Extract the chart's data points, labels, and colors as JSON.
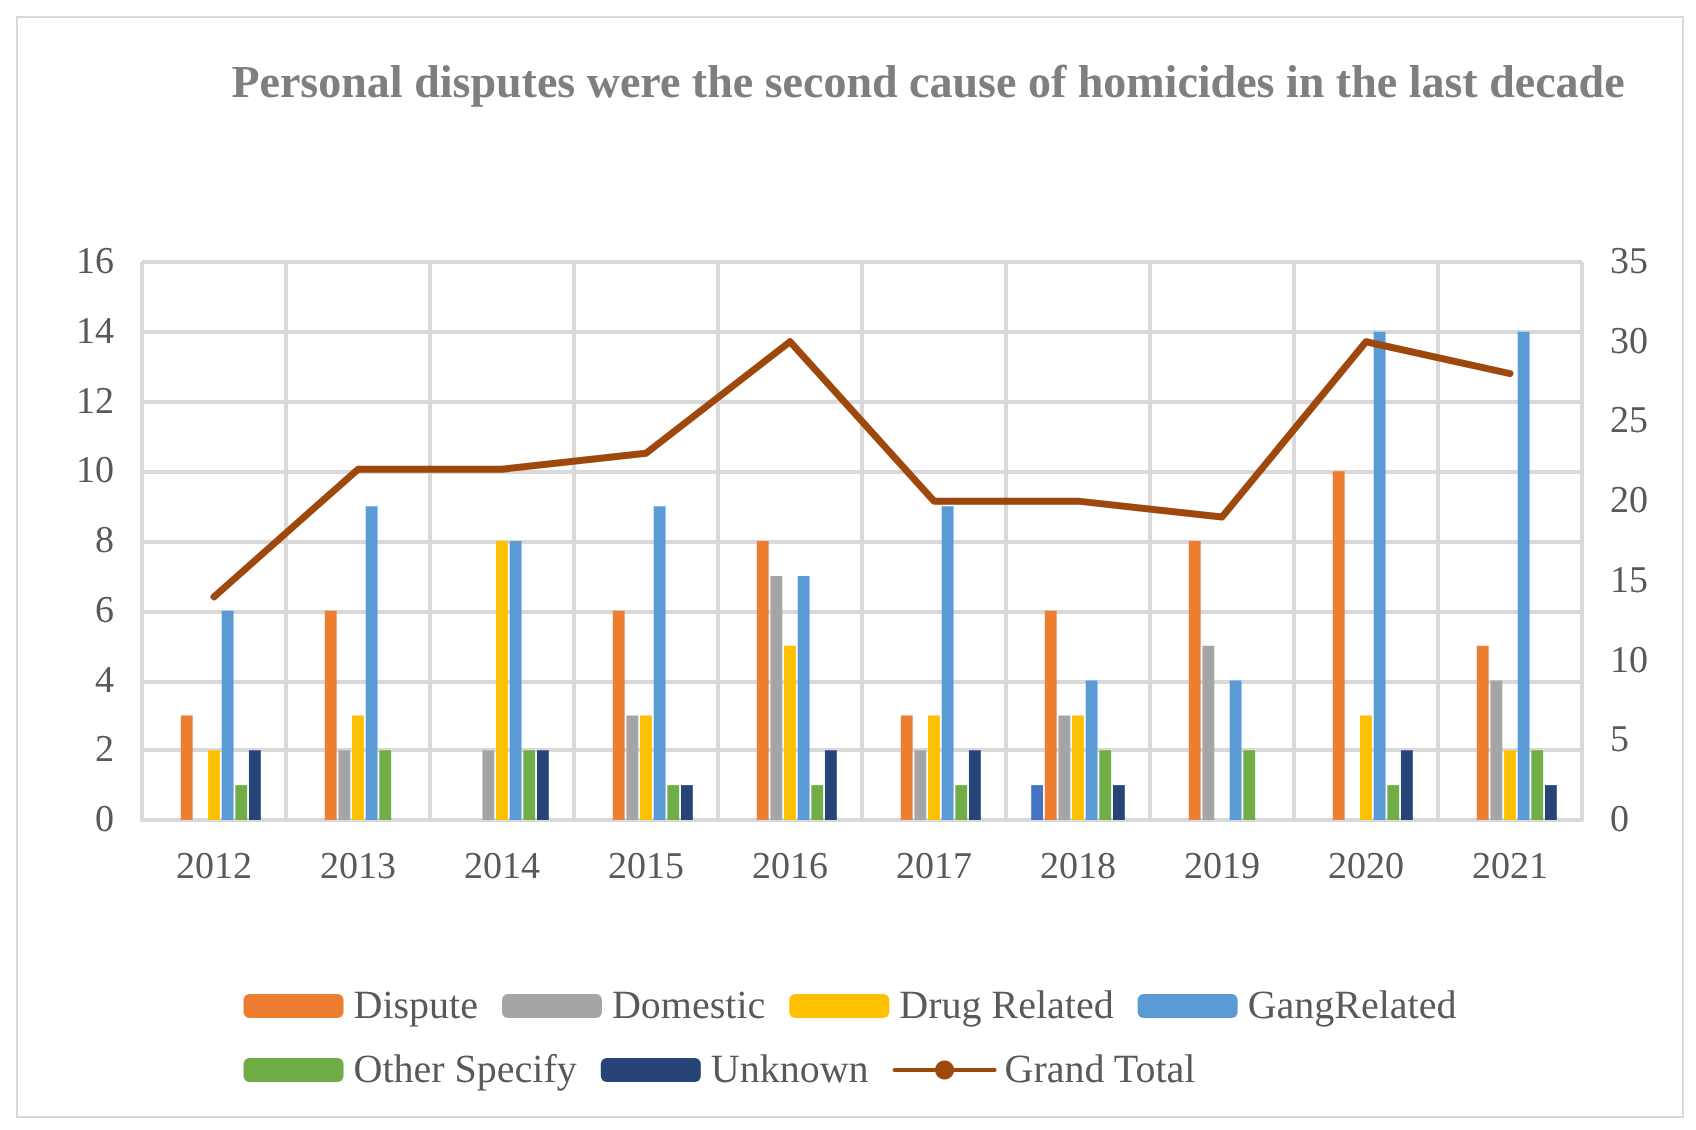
{
  "chart_data": {
    "type": "bar",
    "title": "Personal disputes were the second cause of homicides in the last decade",
    "categories": [
      "2012",
      "2013",
      "2014",
      "2015",
      "2016",
      "2017",
      "2018",
      "2019",
      "2020",
      "2021"
    ],
    "series": [
      {
        "color": "#4472c4",
        "values": [
          null,
          null,
          null,
          null,
          null,
          null,
          1,
          null,
          null,
          null
        ]
      },
      {
        "name": "Dispute",
        "color": "#ed7d31",
        "values": [
          3,
          6,
          null,
          6,
          8,
          3,
          6,
          8,
          10,
          5
        ]
      },
      {
        "name": "Domestic",
        "color": "#a5a5a5",
        "values": [
          null,
          2,
          2,
          3,
          7,
          2,
          3,
          5,
          null,
          4
        ]
      },
      {
        "name": "Drug Related",
        "color": "#ffc000",
        "values": [
          2,
          3,
          8,
          3,
          5,
          3,
          3,
          null,
          3,
          2
        ]
      },
      {
        "name": "GangRelated",
        "color": "#5b9bd5",
        "values": [
          6,
          9,
          8,
          9,
          7,
          9,
          4,
          4,
          14,
          14
        ]
      },
      {
        "name": "Other Specify",
        "color": "#70ad47",
        "values": [
          1,
          2,
          2,
          1,
          1,
          1,
          2,
          2,
          1,
          2
        ]
      },
      {
        "name": "Unknown",
        "color": "#264478",
        "values": [
          2,
          null,
          2,
          1,
          2,
          2,
          1,
          null,
          2,
          1
        ]
      },
      {
        "name": "Grand Total",
        "type": "line",
        "axis": "y2",
        "color": "#9e480e",
        "values": [
          14,
          22,
          22,
          23,
          30,
          20,
          20,
          19,
          30,
          28
        ]
      }
    ],
    "ylim": [
      0,
      16
    ],
    "yticks": [
      0,
      2,
      4,
      6,
      8,
      10,
      12,
      14,
      16
    ],
    "y2lim": [
      0,
      35
    ],
    "y2ticks": [
      0,
      5,
      10,
      15,
      20,
      25,
      30,
      35
    ],
    "grid": true,
    "legend": "bottom",
    "marker": "none"
  }
}
